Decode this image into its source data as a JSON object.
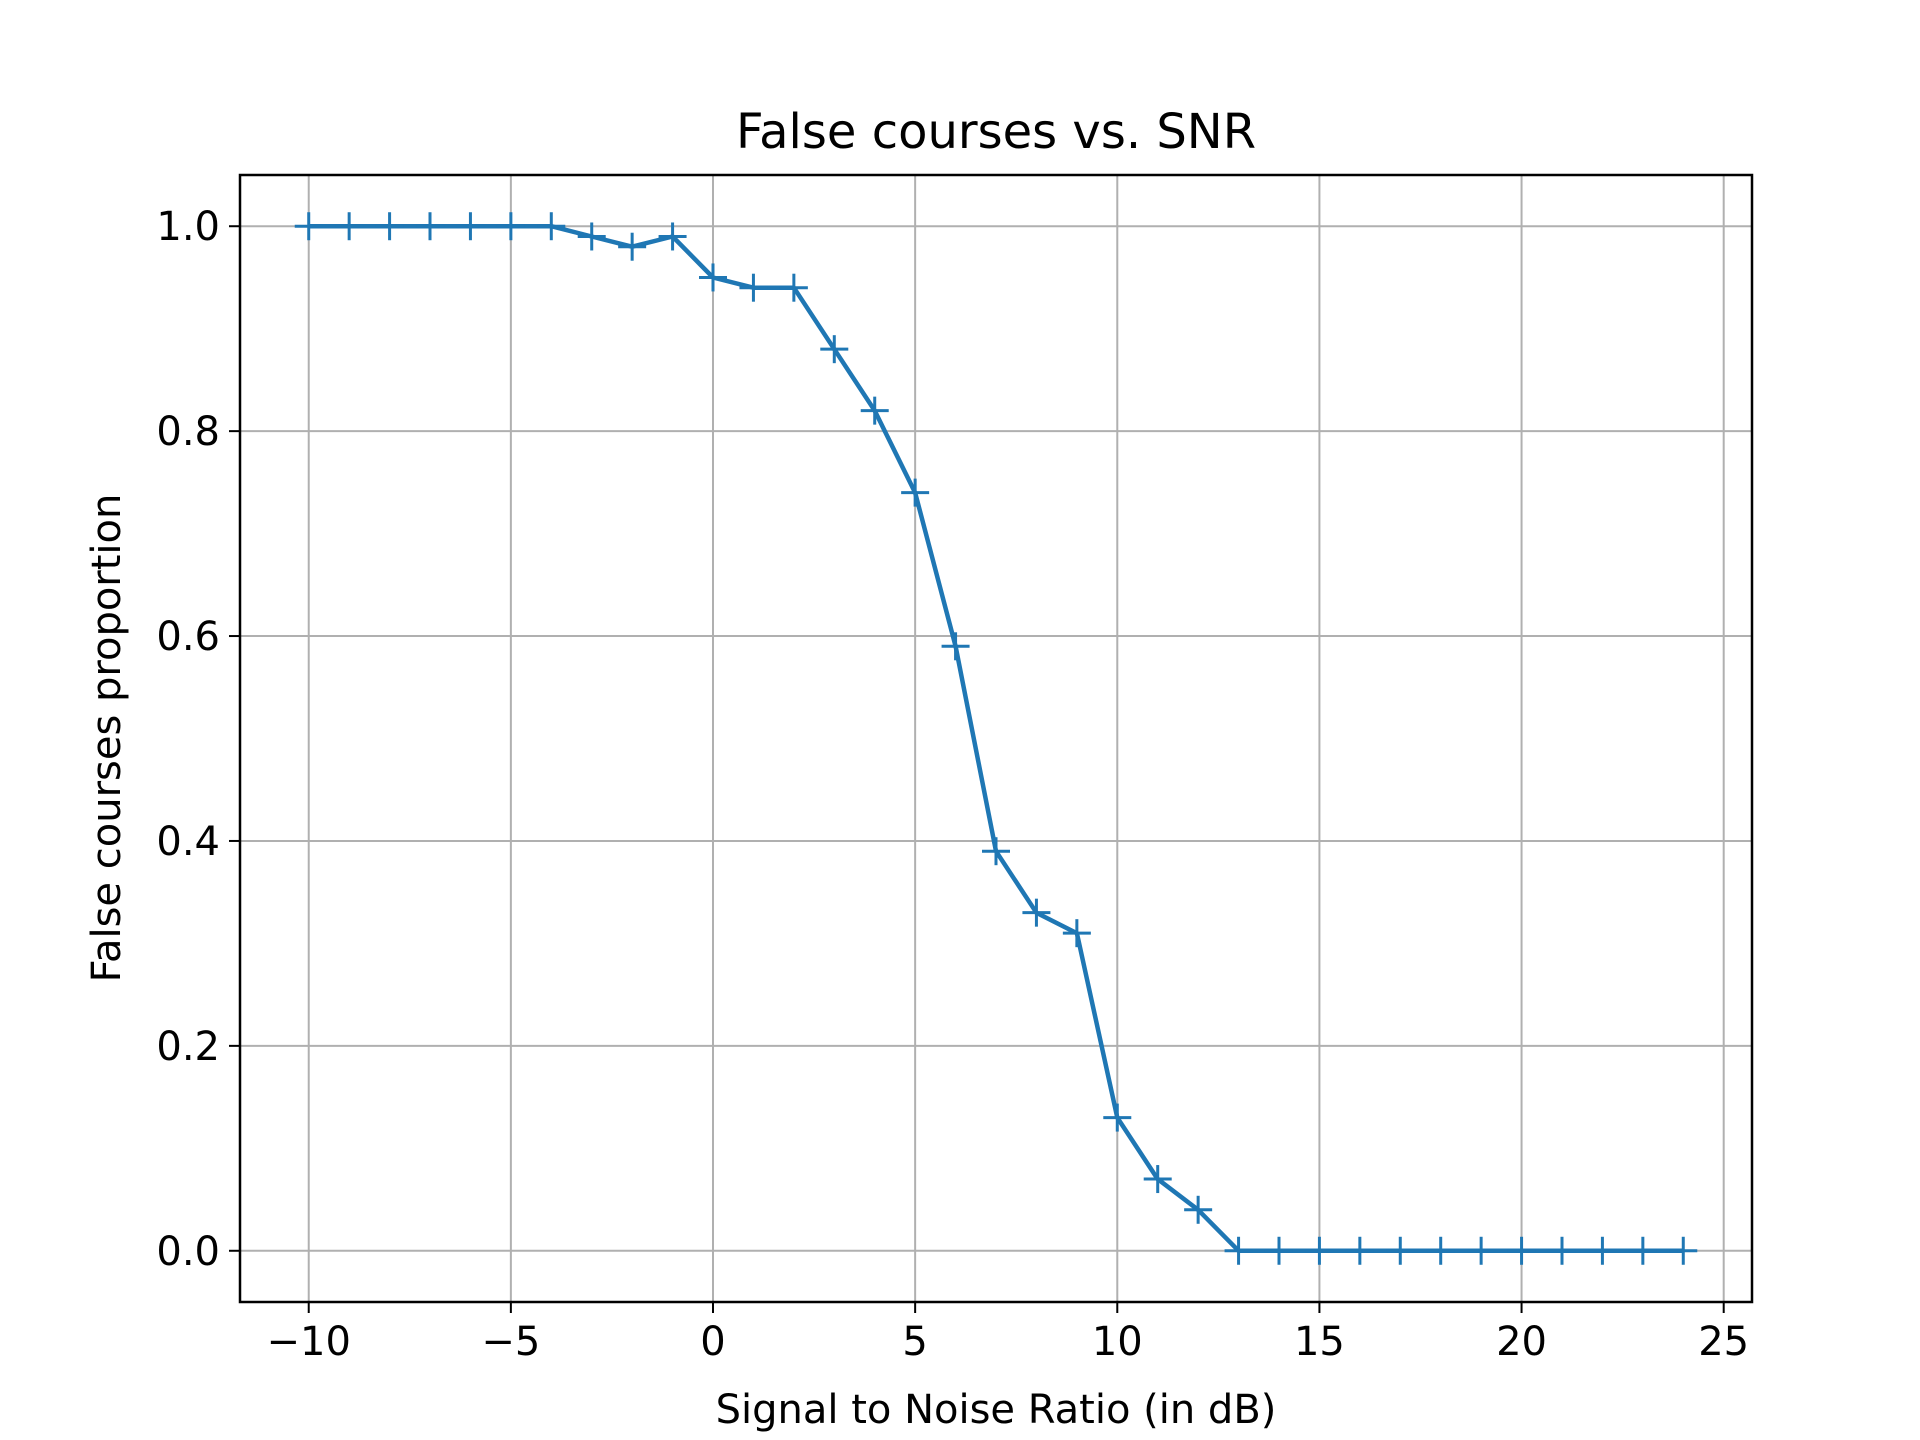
{
  "chart_data": {
    "type": "line",
    "title": "False courses vs. SNR",
    "xlabel": "Signal to Noise Ratio (in dB)",
    "ylabel": "False courses proportion",
    "xlim": [
      -11.7,
      25.7
    ],
    "ylim": [
      -0.05,
      1.05
    ],
    "xticks": [
      -10,
      -5,
      0,
      5,
      10,
      15,
      20,
      25
    ],
    "xtick_labels": [
      "−10",
      "−5",
      "0",
      "5",
      "10",
      "15",
      "20",
      "25"
    ],
    "yticks": [
      0.0,
      0.2,
      0.4,
      0.6,
      0.8,
      1.0
    ],
    "ytick_labels": [
      "0.0",
      "0.2",
      "0.4",
      "0.6",
      "0.8",
      "1.0"
    ],
    "grid": true,
    "marker": "+",
    "color": "#1f77b4",
    "series": [
      {
        "x": [
          -10,
          -9,
          -8,
          -7,
          -6,
          -5,
          -4,
          -3,
          -2,
          -1,
          0,
          1,
          2,
          3,
          4,
          5,
          6,
          7,
          8,
          9,
          10,
          11,
          12,
          13,
          14,
          15,
          16,
          17,
          18,
          19,
          20,
          21,
          22,
          23,
          24
        ],
        "values": [
          1.0,
          1.0,
          1.0,
          1.0,
          1.0,
          1.0,
          1.0,
          0.99,
          0.98,
          0.99,
          0.95,
          0.94,
          0.94,
          0.88,
          0.82,
          0.74,
          0.59,
          0.39,
          0.33,
          0.31,
          0.13,
          0.07,
          0.04,
          0.0,
          0.0,
          0.0,
          0.0,
          0.0,
          0.0,
          0.0,
          0.0,
          0.0,
          0.0,
          0.0,
          0.0
        ]
      }
    ]
  }
}
